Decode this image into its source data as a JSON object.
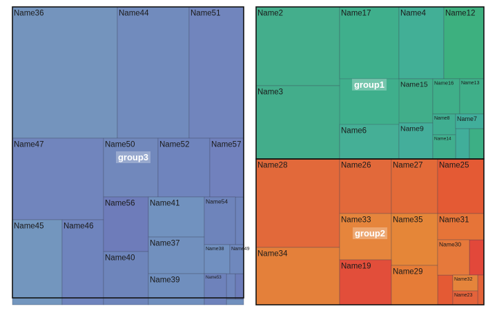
{
  "chart_data": {
    "type": "treemap",
    "title": "",
    "groups": [
      {
        "name": "group3",
        "color": "#7185BD",
        "items": [
          {
            "name": "Name36",
            "value": 46,
            "color": "#7494BD"
          },
          {
            "name": "Name44",
            "value": 31,
            "color": "#718BBD"
          },
          {
            "name": "Name51",
            "value": 29,
            "color": "#7185BD"
          },
          {
            "name": "Name47",
            "value": 39,
            "color": "#7185BD"
          },
          {
            "name": "Name50",
            "value": 20,
            "color": "#7188BC"
          },
          {
            "name": "Name52",
            "value": 18,
            "color": "#6F84BD"
          },
          {
            "name": "Name57",
            "value": 14,
            "color": "#7181BD"
          },
          {
            "name": "Name45",
            "value": 22,
            "color": "#7396BE"
          },
          {
            "name": "Name46",
            "value": 18,
            "color": "#6F84BD"
          },
          {
            "name": "Name56",
            "value": 12,
            "color": "#6E7CBA"
          },
          {
            "name": "Name40",
            "value": 12,
            "color": "#6E85BB"
          },
          {
            "name": "Name41",
            "value": 9,
            "color": "#7192BF"
          },
          {
            "name": "Name37",
            "value": 8,
            "color": "#7190BE"
          },
          {
            "name": "Name39",
            "value": 6,
            "color": "#708FBE"
          },
          {
            "name": "Name54",
            "value": 3,
            "color": "#6E84BB"
          },
          {
            "name": "Name38",
            "value": 2,
            "color": "#7190C0"
          },
          {
            "name": "Name49",
            "value": 2,
            "color": "#6F88BD"
          },
          {
            "name": "Name53",
            "value": 2,
            "color": "#6E82BB"
          }
        ]
      },
      {
        "name": "group1",
        "color": "#3FAF8C",
        "items": [
          {
            "name": "Name2",
            "value": 16,
            "color": "#44AE8C"
          },
          {
            "name": "Name3",
            "value": 14,
            "color": "#43AD8B"
          },
          {
            "name": "Name17",
            "value": 13,
            "color": "#3FAF8C"
          },
          {
            "name": "Name4",
            "value": 8,
            "color": "#42AF96"
          },
          {
            "name": "Name12",
            "value": 7,
            "color": "#3DB07F"
          },
          {
            "name": "Name6",
            "value": 7,
            "color": "#45AF96"
          },
          {
            "name": "Name15",
            "value": 5,
            "color": "#41AE8A"
          },
          {
            "name": "Name9",
            "value": 4,
            "color": "#44AE9B"
          },
          {
            "name": "Name16",
            "value": 3,
            "color": "#3FAF89"
          },
          {
            "name": "Name13",
            "value": 3,
            "color": "#3FAF89"
          },
          {
            "name": "Name8",
            "value": 2,
            "color": "#40AE91"
          },
          {
            "name": "Name7",
            "value": 2,
            "color": "#41AE9B"
          },
          {
            "name": "Name14",
            "value": 1,
            "color": "#40AF8E"
          }
        ]
      },
      {
        "name": "group2",
        "color": "#E26B3C",
        "items": [
          {
            "name": "Name28",
            "value": 20,
            "color": "#E2693A"
          },
          {
            "name": "Name34",
            "value": 16,
            "color": "#E4803A"
          },
          {
            "name": "Name26",
            "value": 9,
            "color": "#E2693A"
          },
          {
            "name": "Name27",
            "value": 8,
            "color": "#E36A38"
          },
          {
            "name": "Name25",
            "value": 7,
            "color": "#E45A34"
          },
          {
            "name": "Name33",
            "value": 8,
            "color": "#E6853C"
          },
          {
            "name": "Name35",
            "value": 7,
            "color": "#E58638"
          },
          {
            "name": "Name31",
            "value": 5,
            "color": "#E67438"
          },
          {
            "name": "Name19",
            "value": 9,
            "color": "#E24E3A"
          },
          {
            "name": "Name29",
            "value": 7,
            "color": "#E67C37"
          },
          {
            "name": "Name30",
            "value": 4,
            "color": "#E6793B"
          },
          {
            "name": "Name32",
            "value": 2,
            "color": "#E5843B"
          },
          {
            "name": "Name23",
            "value": 2,
            "color": "#E4633B"
          }
        ]
      }
    ]
  }
}
